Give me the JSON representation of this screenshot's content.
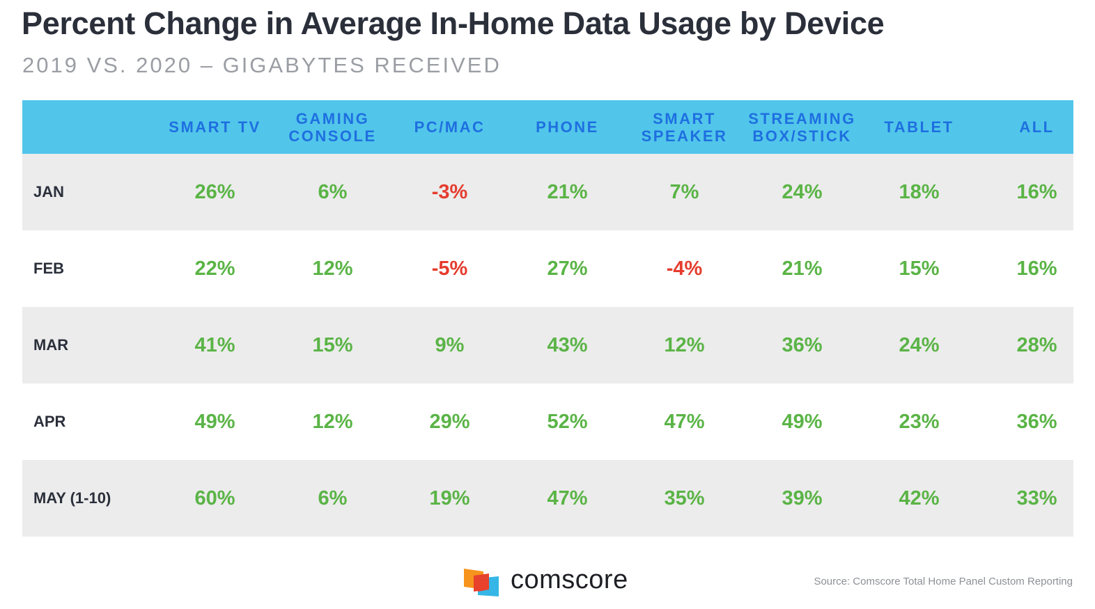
{
  "title": "Percent Change in Average In-Home Data Usage by Device",
  "subtitle": "2019 VS. 2020 – GIGABYTES RECEIVED",
  "colors": {
    "header_bg": "#51c6ea",
    "header_text": "#1f6fe0",
    "positive": "#5ab446",
    "negative": "#e53c2e",
    "row_shade": "#ececec"
  },
  "chart_data": {
    "type": "table",
    "title": "Percent Change in Average In-Home Data Usage by Device",
    "subtitle": "2019 VS. 2020 – GIGABYTES RECEIVED",
    "columns": [
      "SMART TV",
      "GAMING\nCONSOLE",
      "PC/MAC",
      "PHONE",
      "SMART\nSPEAKER",
      "STREAMING\nBOX/STICK",
      "TABLET",
      "ALL"
    ],
    "rows": [
      {
        "label": "JAN",
        "cells": [
          "26%",
          "6%",
          "-3%",
          "21%",
          "7%",
          "24%",
          "18%",
          "16%"
        ],
        "values": [
          26,
          6,
          -3,
          21,
          7,
          24,
          18,
          16
        ]
      },
      {
        "label": "FEB",
        "cells": [
          "22%",
          "12%",
          "-5%",
          "27%",
          "-4%",
          "21%",
          "15%",
          "16%"
        ],
        "values": [
          22,
          12,
          -5,
          27,
          -4,
          21,
          15,
          16
        ]
      },
      {
        "label": "MAR",
        "cells": [
          "41%",
          "15%",
          "9%",
          "43%",
          "12%",
          "36%",
          "24%",
          "28%"
        ],
        "values": [
          41,
          15,
          9,
          43,
          12,
          36,
          24,
          28
        ]
      },
      {
        "label": "APR",
        "cells": [
          "49%",
          "12%",
          "29%",
          "52%",
          "47%",
          "49%",
          "23%",
          "36%"
        ],
        "values": [
          49,
          12,
          29,
          52,
          47,
          49,
          23,
          36
        ]
      },
      {
        "label": "MAY (1-10)",
        "cells": [
          "60%",
          "6%",
          "19%",
          "47%",
          "35%",
          "39%",
          "42%",
          "33%"
        ],
        "values": [
          60,
          6,
          19,
          47,
          35,
          39,
          42,
          33
        ]
      }
    ]
  },
  "footer": {
    "logo_icon": "comscore-logo-icon",
    "brand": "comscore",
    "source": "Source: Comscore Total Home Panel Custom Reporting"
  }
}
